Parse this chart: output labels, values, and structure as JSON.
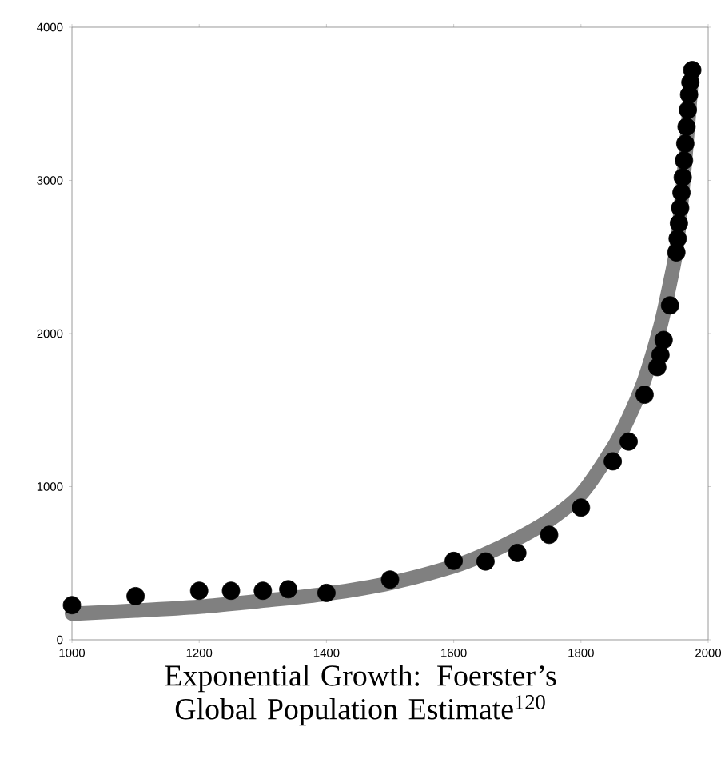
{
  "chart_data": {
    "type": "scatter",
    "title": "Exponential Growth: Foerster’s Global Population Estimate$^{120}$",
    "xlim": [
      1000,
      2000
    ],
    "ylim": [
      0,
      4000
    ],
    "xticks": [
      1000,
      1200,
      1400,
      1600,
      1800,
      2000
    ],
    "yticks": [
      0,
      1000,
      2000,
      3000,
      4000
    ],
    "series": [
      {
        "type": "line",
        "color": "#808080",
        "x": [
          1000,
          1100,
          1200,
          1300,
          1400,
          1500,
          1600,
          1650,
          1700,
          1750,
          1800,
          1850,
          1875,
          1900,
          1925,
          1940,
          1950,
          1960,
          1970,
          1975
        ],
        "values": [
          170,
          190,
          215,
          255,
          300,
          370,
          480,
          560,
          660,
          780,
          950,
          1250,
          1450,
          1700,
          2050,
          2330,
          2550,
          2950,
          3450,
          3720
        ]
      },
      {
        "color": "#000000",
        "marker": "circle",
        "x": [
          1000,
          1100,
          1200,
          1250,
          1300,
          1340,
          1400,
          1500,
          1600,
          1650,
          1700,
          1750,
          1800,
          1850,
          1875,
          1900,
          1920,
          1925,
          1930,
          1940,
          1950,
          1952,
          1954,
          1956,
          1958,
          1960,
          1962,
          1964,
          1966,
          1968,
          1970,
          1972,
          1974,
          1975
        ],
        "values": [
          226,
          285,
          320,
          320,
          320,
          330,
          306,
          393,
          515,
          511,
          567,
          685,
          863,
          1165,
          1294,
          1600,
          1781,
          1861,
          1958,
          2184,
          2530,
          2620,
          2720,
          2820,
          2920,
          3020,
          3130,
          3240,
          3350,
          3460,
          3560,
          3640,
          null,
          3720
        ]
      }
    ]
  }
}
